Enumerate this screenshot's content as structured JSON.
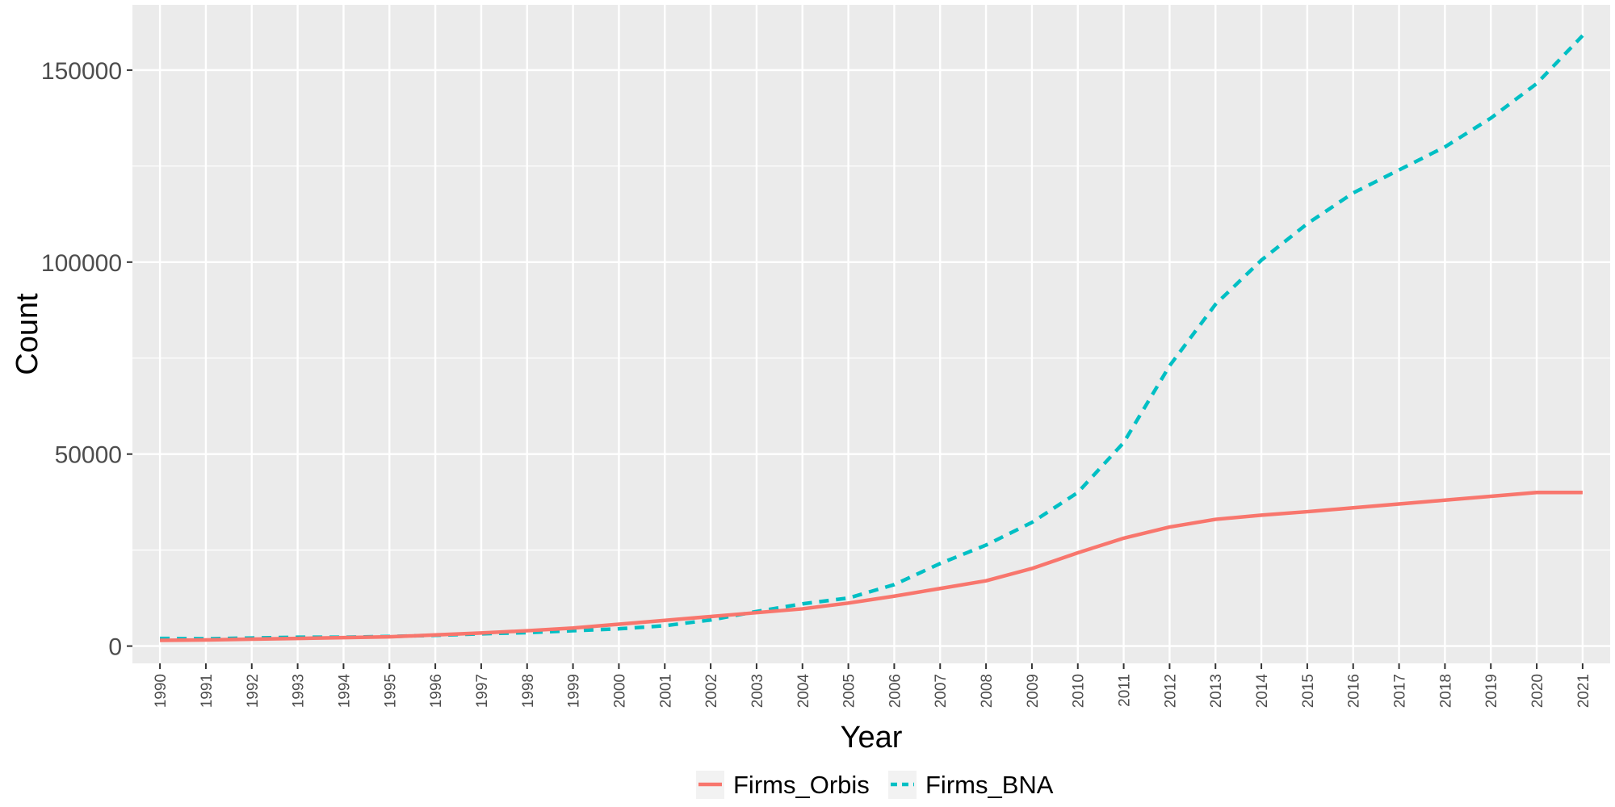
{
  "chart_data": {
    "type": "line",
    "title": "",
    "xlabel": "Year",
    "ylabel": "Count",
    "x": [
      1990,
      1991,
      1992,
      1993,
      1994,
      1995,
      1996,
      1997,
      1998,
      1999,
      2000,
      2001,
      2002,
      2003,
      2004,
      2005,
      2006,
      2007,
      2008,
      2009,
      2010,
      2011,
      2012,
      2013,
      2014,
      2015,
      2016,
      2017,
      2018,
      2019,
      2020,
      2021
    ],
    "x_tick_labels": [
      "1990",
      "1991",
      "1992",
      "1993",
      "1994",
      "1995",
      "1996",
      "1997",
      "1998",
      "1999",
      "2000",
      "2001",
      "2002",
      "2003",
      "2004",
      "2005",
      "2006",
      "2007",
      "2008",
      "2009",
      "2010",
      "2011",
      "2012",
      "2013",
      "2014",
      "2015",
      "2016",
      "2017",
      "2018",
      "2019",
      "2020",
      "2021"
    ],
    "ylim": [
      -4500,
      167000
    ],
    "y_ticks": [
      0,
      50000,
      100000,
      150000
    ],
    "y_tick_labels": [
      "0",
      "50000",
      "100000",
      "150000"
    ],
    "grid": true,
    "legend_position": "bottom",
    "series": [
      {
        "name": "Firms_Orbis",
        "color": "#F8766D",
        "line_style": "solid",
        "values": [
          1500,
          1600,
          1800,
          2000,
          2200,
          2400,
          2900,
          3400,
          4000,
          4700,
          5700,
          6700,
          7700,
          8700,
          9700,
          11200,
          13000,
          15000,
          17000,
          20200,
          24300,
          28100,
          31000,
          33000,
          34100,
          35000,
          36000,
          37000,
          38000,
          39000,
          40000,
          40000
        ]
      },
      {
        "name": "Firms_BNA",
        "color": "#00BFC4",
        "line_style": "dashed",
        "values": [
          2000,
          1900,
          2100,
          2300,
          2300,
          2500,
          2800,
          3200,
          3500,
          4000,
          4500,
          5300,
          6800,
          9000,
          11000,
          12500,
          16000,
          21500,
          26300,
          32200,
          40000,
          53000,
          73000,
          89000,
          100500,
          110000,
          118000,
          124000,
          130000,
          137500,
          146500,
          159000
        ]
      }
    ]
  }
}
